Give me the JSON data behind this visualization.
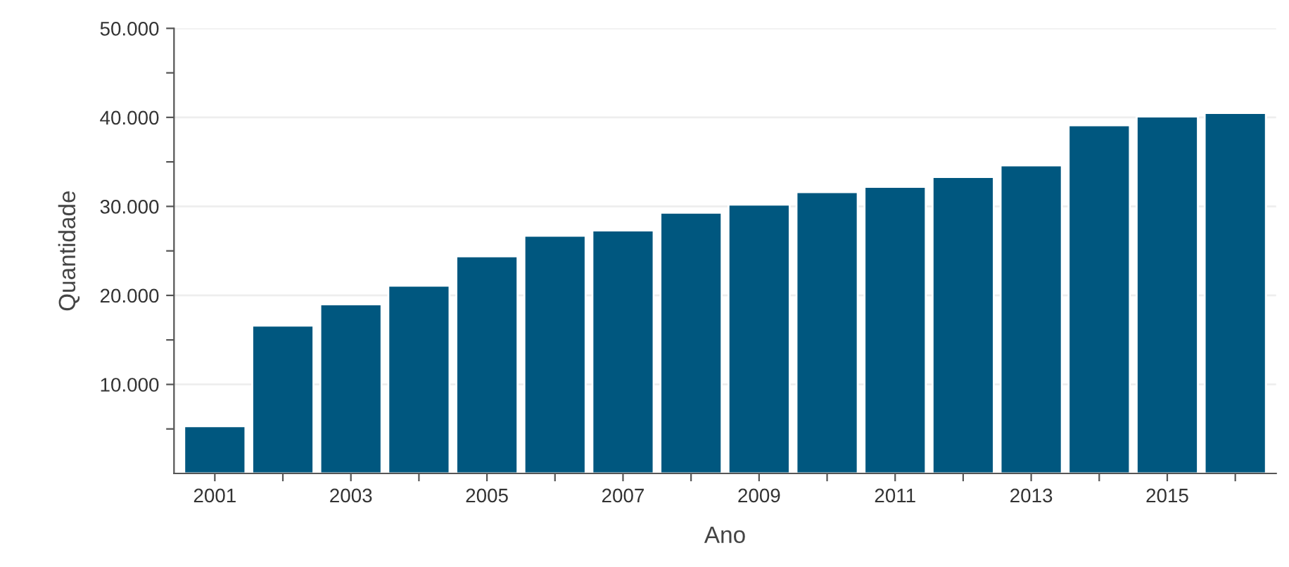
{
  "chart_data": {
    "type": "bar",
    "xlabel": "Ano",
    "ylabel": "Quantidade",
    "color": "#00577f",
    "categories": [
      "2001",
      null,
      "2003",
      null,
      "2005",
      null,
      "2007",
      null,
      "2009",
      null,
      "2011",
      null,
      "2013",
      null,
      "2015",
      null
    ],
    "values": [
      5300,
      16600,
      19000,
      21100,
      24400,
      26700,
      27300,
      29300,
      30200,
      31600,
      32200,
      33300,
      34600,
      39100,
      40100,
      40500
    ],
    "ylim": [
      0,
      50000
    ],
    "yticks": [
      {
        "value": 5000,
        "label": null
      },
      {
        "value": 10000,
        "label": "10.000"
      },
      {
        "value": 15000,
        "label": null
      },
      {
        "value": 20000,
        "label": "20.000"
      },
      {
        "value": 25000,
        "label": null
      },
      {
        "value": 30000,
        "label": "30.000"
      },
      {
        "value": 35000,
        "label": null
      },
      {
        "value": 40000,
        "label": "40.000"
      },
      {
        "value": 45000,
        "label": null
      },
      {
        "value": 50000,
        "label": "50.000"
      }
    ],
    "grid": "y"
  }
}
